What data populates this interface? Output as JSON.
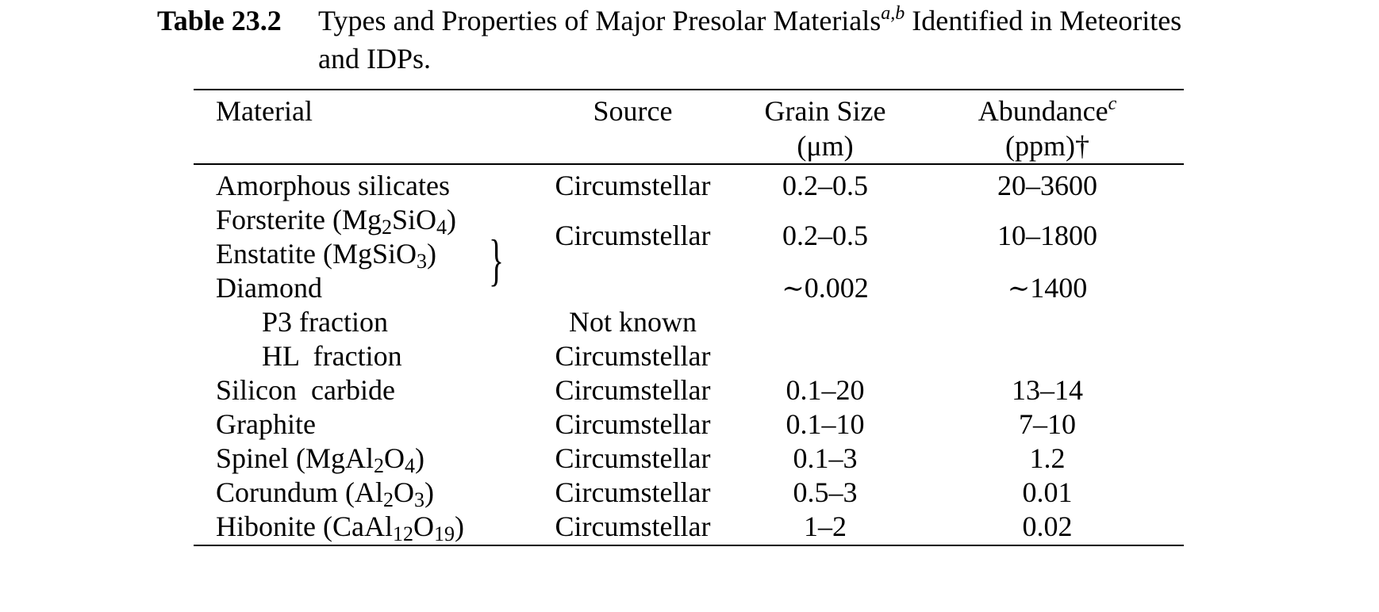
{
  "caption": {
    "label": "Table  23.2",
    "title_pre": "Types and Properties of Major Presolar Materials",
    "title_sup": "a,b",
    "title_post": " Identified in Meteorites and IDPs."
  },
  "header": {
    "material": "Material",
    "source": "Source",
    "grain_size": "Grain Size",
    "grain_size_unit": "(μm)",
    "abundance": "Abundance",
    "abundance_sup": "c",
    "abundance_unit": "(ppm)†"
  },
  "rows": {
    "amorphous": {
      "material": "Amorphous silicates",
      "source": "Circumstellar",
      "grain": "0.2–0.5",
      "abundance": "20–3600"
    },
    "forsterite": {
      "pre": "Forsterite (Mg",
      "s1": "2",
      "mid": "SiO",
      "s2": "4",
      "post": ")"
    },
    "enstatite": {
      "pre": "Enstatite (MgSiO",
      "s1": "3",
      "post": ")"
    },
    "forst_enst": {
      "source": "Circumstellar",
      "grain": "0.2–0.5",
      "abundance": "10–1800"
    },
    "diamond": {
      "material": "Diamond",
      "grain": "0.002",
      "abundance": "1400",
      "approx": "∼"
    },
    "p3": {
      "material": "P3 fraction",
      "source": "Not known"
    },
    "hl": {
      "material": "HL  fraction",
      "source": "Circumstellar"
    },
    "sic": {
      "material": "Silicon  carbide",
      "source": "Circumstellar",
      "grain": "0.1–20",
      "abundance": "13–14"
    },
    "graphite": {
      "material": "Graphite",
      "source": "Circumstellar",
      "grain": "0.1–10",
      "abundance": "7–10"
    },
    "spinel": {
      "pre": "Spinel (MgAl",
      "s1": "2",
      "mid": "O",
      "s2": "4",
      "post": ")",
      "source": "Circumstellar",
      "grain": "0.1–3",
      "abundance": "1.2"
    },
    "corundum": {
      "pre": "Corundum (Al",
      "s1": "2",
      "mid": "O",
      "s2": "3",
      "post": ")",
      "source": "Circumstellar",
      "grain": "0.5–3",
      "abundance": "0.01"
    },
    "hibonite": {
      "pre": "Hibonite (CaAl",
      "s1": "12",
      "mid": "O",
      "s2": "19",
      "post": ")",
      "source": "Circumstellar",
      "grain": "1–2",
      "abundance": "0.02"
    }
  }
}
